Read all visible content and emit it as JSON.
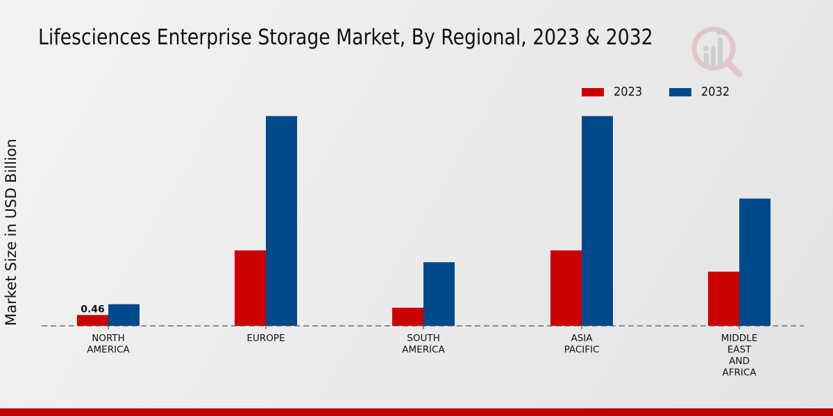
{
  "chart_data": {
    "type": "bar",
    "title": "Lifesciences Enterprise Storage Market, By Regional, 2023 & 2032",
    "xlabel": "",
    "ylabel": "Market Size in USD Billion",
    "categories": [
      [
        "NORTH",
        "AMERICA"
      ],
      [
        "EUROPE"
      ],
      [
        "SOUTH",
        "AMERICA"
      ],
      [
        "ASIA",
        "PACIFIC"
      ],
      [
        "MIDDLE",
        "EAST",
        "AND",
        "AFRICA"
      ]
    ],
    "category_names": [
      "NORTH AMERICA",
      "EUROPE",
      "SOUTH AMERICA",
      "ASIA PACIFIC",
      "MIDDLE EAST AND AFRICA"
    ],
    "series": [
      {
        "name": "2023",
        "color": "#cc0000",
        "values": [
          0.46,
          3.2,
          0.77,
          3.2,
          2.3
        ]
      },
      {
        "name": "2032",
        "color": "#004a8c",
        "values": [
          0.92,
          8.9,
          2.7,
          8.9,
          5.4
        ]
      }
    ],
    "data_labels": [
      {
        "series": 0,
        "category": 0,
        "text": "0.46"
      }
    ],
    "ylim": [
      0,
      10.5
    ],
    "grid": false,
    "baseline_style": "dashed",
    "legend_position": "top-right"
  },
  "branding": {
    "logo": "market-research-magnifier-logo",
    "footer_color": "#c00000"
  }
}
